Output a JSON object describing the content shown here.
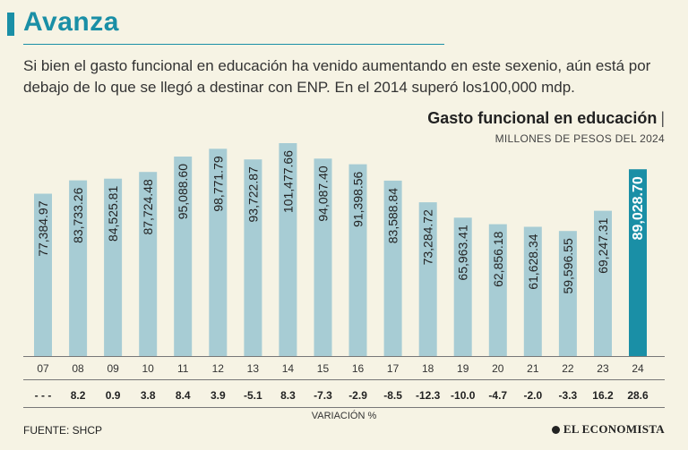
{
  "header": {
    "title": "Avanza",
    "subtitle": "Si bien el gasto funcional en educación ha venido aumentando en este sexenio, aún está por debajo de lo que se llegó a destinar con ENP. En el 2014 superó los100,000 mdp."
  },
  "chart_header": {
    "title": "Gasto funcional en educación",
    "pipe": "|",
    "units": "MILLONES DE PESOS DEL 2024"
  },
  "chart_data": {
    "type": "bar",
    "title": "Gasto funcional en educación",
    "ylabel": "MILLONES DE PESOS DEL 2024",
    "xlabel": "",
    "ylim": [
      0,
      110000
    ],
    "categories": [
      "07",
      "08",
      "09",
      "10",
      "11",
      "12",
      "13",
      "14",
      "15",
      "16",
      "17",
      "18",
      "19",
      "20",
      "21",
      "22",
      "23",
      "24"
    ],
    "values": [
      77384.97,
      83733.26,
      84525.81,
      87724.48,
      95088.6,
      98771.79,
      93722.87,
      101477.66,
      94087.4,
      91398.56,
      83588.84,
      73284.72,
      65963.41,
      62856.18,
      61628.34,
      59596.55,
      69247.31,
      89028.7
    ],
    "value_labels": [
      "77,384.97",
      "83,733.26",
      "84,525.81",
      "87,724.48",
      "95,088.60",
      "98,771.79",
      "93,722.87",
      "101,477.66",
      "94,087.40",
      "91,398.56",
      "83,588.84",
      "73,284.72",
      "65,963.41",
      "62,856.18",
      "61,628.34",
      "59,596.55",
      "69,247.31",
      "89,028.70"
    ],
    "variation": [
      "- - -",
      "8.2",
      "0.9",
      "3.8",
      "8.4",
      "3.9",
      "-5.1",
      "8.3",
      "-7.3",
      "-2.9",
      "-8.5",
      "-12.3",
      "-10.0",
      "-4.7",
      "-2.0",
      "-3.3",
      "16.2",
      "28.6"
    ],
    "variation_label": "VARIACIÓN %",
    "highlight_index": 17
  },
  "colors": {
    "bar": "#a7ccd4",
    "bar_highlight": "#1a8fa6",
    "label_dark": "#222222",
    "label_highlight": "#ffffff",
    "accent": "#1a8fa6"
  },
  "footer": {
    "source": "FUENTE: SHCP",
    "logo": "EL ECONOMISTA"
  }
}
